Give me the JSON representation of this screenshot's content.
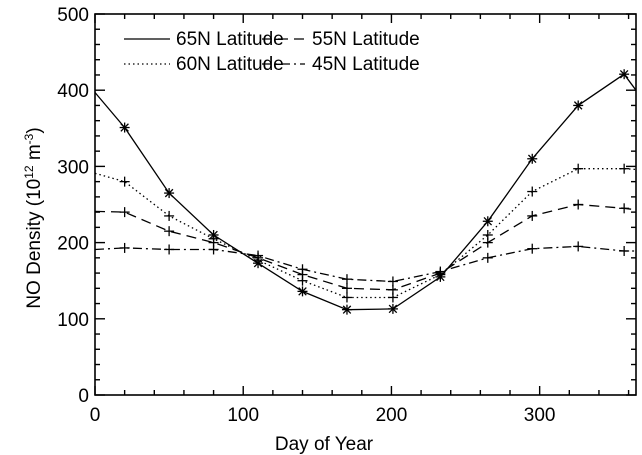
{
  "chart_data": {
    "type": "line",
    "title": "",
    "xlabel": "Day of Year",
    "ylabel": "NO Density (10",
    "ylabel_exp": "12",
    "ylabel_unit": " m",
    "ylabel_unit_exp": "-3",
    "ylabel_close": ")",
    "xlim": [
      0,
      365
    ],
    "ylim": [
      0,
      500
    ],
    "xticks": [
      0,
      100,
      200,
      300
    ],
    "yticks": [
      0,
      100,
      200,
      300,
      400,
      500
    ],
    "grid": false,
    "legend_position": "top",
    "x": [
      20,
      50,
      80,
      110,
      140,
      170,
      201,
      233,
      265,
      295,
      326,
      357
    ],
    "series": [
      {
        "name": "65N Latitude",
        "style": "solid",
        "marker": "asterisk",
        "y_start": 397,
        "y_end": 400,
        "values": [
          351,
          265,
          210,
          173,
          136,
          112,
          113,
          155,
          228,
          310,
          380,
          421
        ]
      },
      {
        "name": "60N Latitude",
        "style": "dotted",
        "marker": "plus",
        "y_start": 291,
        "y_end": 296,
        "values": [
          280,
          235,
          205,
          177,
          150,
          128,
          128,
          158,
          210,
          267,
          297,
          297
        ]
      },
      {
        "name": "55N Latitude",
        "style": "dashed",
        "marker": "plus",
        "y_start": 241,
        "y_end": 243,
        "values": [
          240,
          215,
          200,
          180,
          158,
          140,
          138,
          160,
          200,
          235,
          250,
          245
        ]
      },
      {
        "name": "45N Latitude",
        "style": "dashdot",
        "marker": "plus",
        "y_start": 191,
        "y_end": 189,
        "values": [
          193,
          191,
          191,
          183,
          165,
          152,
          149,
          162,
          180,
          192,
          195,
          189
        ]
      }
    ]
  }
}
